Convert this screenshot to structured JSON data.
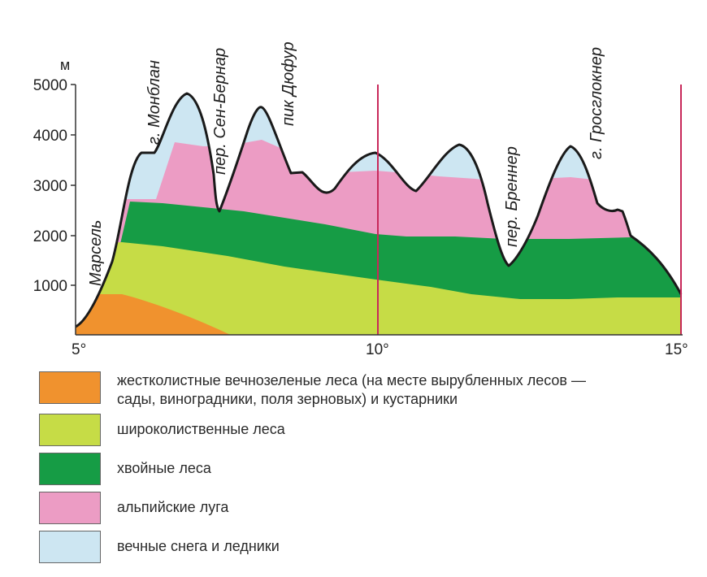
{
  "axis": {
    "y_unit": "м",
    "y_ticks": [
      "5000",
      "4000",
      "3000",
      "2000",
      "1000"
    ],
    "x_ticks": [
      "5°",
      "10°",
      "15°"
    ]
  },
  "labels": {
    "marseille": "Марсель",
    "montblanc": "г. Монблан",
    "st_bernard": "пер. Сен-Бернар",
    "dufour": "пик Дюфур",
    "brenner": "пер. Бреннер",
    "grossglockner": "г. Гросглокнер"
  },
  "legend": [
    {
      "label_line1": "жестколистные вечнозеленые леса (на месте вырубленных лесов —",
      "label_line2": "сады, виноградники, поля зерновых) и кустарники",
      "color": "#f0922e",
      "icon": "orange-swatch"
    },
    {
      "label_line1": "широколиственные леса",
      "label_line2": "",
      "color": "#c6dc46",
      "icon": "light-green-swatch"
    },
    {
      "label_line1": "хвойные леса",
      "label_line2": "",
      "color": "#169c45",
      "icon": "dark-green-swatch"
    },
    {
      "label_line1": "альпийские луга",
      "label_line2": "",
      "color": "#ec9cc4",
      "icon": "pink-swatch"
    },
    {
      "label_line1": "вечные снега и ледники",
      "label_line2": "",
      "color": "#cde6f2",
      "icon": "light-blue-swatch"
    }
  ],
  "colors": {
    "axis": "#333333",
    "meridian": "#c8285a",
    "outline": "#1a1a1a"
  }
}
